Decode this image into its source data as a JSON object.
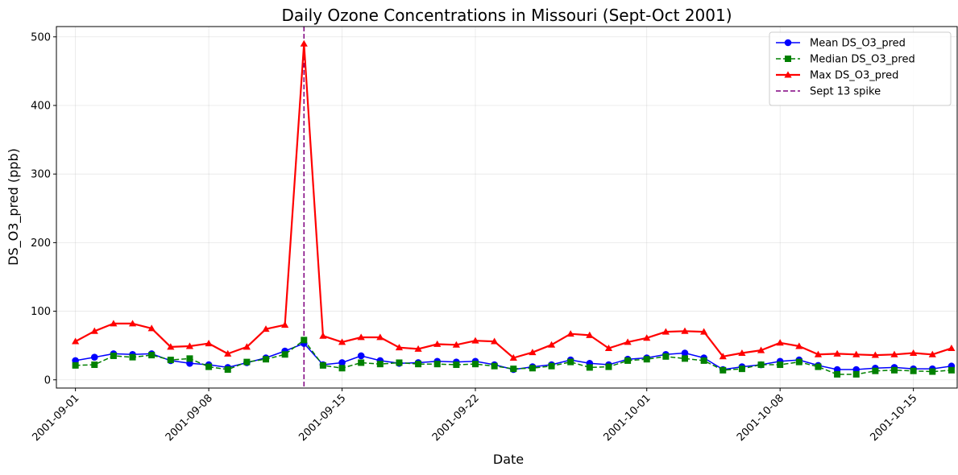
{
  "chart_data": {
    "type": "line",
    "title": "Daily Ozone Concentrations in Missouri (Sept-Oct 2001)",
    "xlabel": "Date",
    "ylabel": "DS_O3_pred (ppb)",
    "ylim": [
      -12,
      515
    ],
    "yticks": [
      0,
      100,
      200,
      300,
      400,
      500
    ],
    "xstart_day": -1.0,
    "xend_day": 46.3,
    "xticks": [
      {
        "day": 0,
        "label": "2001-09-01"
      },
      {
        "day": 7,
        "label": "2001-09-08"
      },
      {
        "day": 14,
        "label": "2001-09-15"
      },
      {
        "day": 21,
        "label": "2001-09-22"
      },
      {
        "day": 30,
        "label": "2001-10-01"
      },
      {
        "day": 37,
        "label": "2001-10-08"
      },
      {
        "day": 44,
        "label": "2001-10-15"
      }
    ],
    "grid": true,
    "legend_position": "top-right",
    "series": [
      {
        "name": "Mean DS_O3_pred",
        "color": "#0000ff",
        "marker": "circle",
        "linestyle": "solid",
        "values": [
          28,
          33,
          38,
          37,
          38,
          28,
          24,
          22,
          18,
          25,
          32,
          42,
          53,
          22,
          25,
          35,
          28,
          24,
          25,
          27,
          26,
          27,
          22,
          15,
          19,
          22,
          29,
          24,
          22,
          30,
          32,
          37,
          39,
          32,
          15,
          19,
          22,
          27,
          29,
          21,
          15,
          15,
          17,
          18,
          16,
          16,
          20
        ]
      },
      {
        "name": "Median DS_O3_pred",
        "color": "#008000",
        "marker": "square",
        "linestyle": "dashed",
        "values": [
          21,
          22,
          35,
          33,
          36,
          29,
          31,
          19,
          15,
          26,
          30,
          37,
          58,
          21,
          17,
          25,
          23,
          25,
          23,
          23,
          22,
          23,
          20,
          16,
          17,
          20,
          26,
          18,
          19,
          28,
          30,
          34,
          31,
          28,
          14,
          16,
          22,
          22,
          26,
          19,
          8,
          8,
          13,
          14,
          13,
          12,
          14
        ]
      },
      {
        "name": "Max DS_O3_pred",
        "color": "#ff0000",
        "marker": "triangle",
        "linestyle": "solid",
        "values": [
          56,
          71,
          82,
          82,
          75,
          48,
          49,
          53,
          38,
          48,
          74,
          80,
          490,
          64,
          55,
          62,
          62,
          47,
          45,
          52,
          51,
          57,
          56,
          32,
          40,
          51,
          67,
          65,
          46,
          55,
          61,
          70,
          71,
          70,
          34,
          39,
          43,
          54,
          49,
          37,
          38,
          37,
          36,
          37,
          39,
          37,
          46
        ]
      }
    ],
    "vline": {
      "name": "Sept 13 spike",
      "day": 12,
      "color": "#800080",
      "linestyle": "dashed"
    }
  }
}
